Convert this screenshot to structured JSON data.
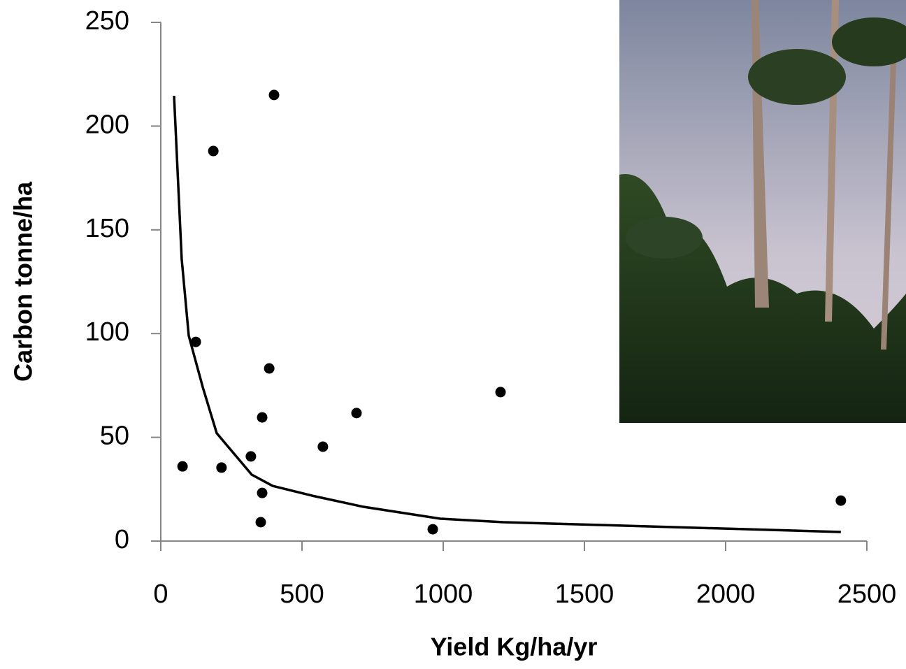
{
  "chart_data": {
    "type": "scatter",
    "x_label": "Yield Kg/ha/yr",
    "y_label": "Carbon tonne/ha",
    "xlim": [
      0,
      2500
    ],
    "xticks": [
      0,
      500,
      1000,
      1500,
      2000,
      2500
    ],
    "ylim": [
      0,
      250
    ],
    "yticks": [
      0,
      50,
      100,
      150,
      200,
      250
    ],
    "color": "#000000",
    "points": {
      "x": [
        77,
        124,
        186,
        401,
        215,
        319,
        359,
        384,
        359,
        354,
        574,
        693,
        963,
        1203,
        2408
      ],
      "y": [
        36,
        96,
        188,
        215,
        35.4,
        40.8,
        59.6,
        83.2,
        23.2,
        9.1,
        45.5,
        61.7,
        5.7,
        71.8,
        19.5
      ]
    },
    "fit": {
      "x": [
        47,
        74,
        99,
        149,
        198,
        322,
        396,
        545,
        718,
        990,
        1213,
        2408
      ],
      "y": [
        214.6,
        136,
        99,
        74,
        52,
        32,
        26.6,
        21.6,
        16.5,
        10.8,
        9.1,
        4.4
      ]
    }
  }
}
